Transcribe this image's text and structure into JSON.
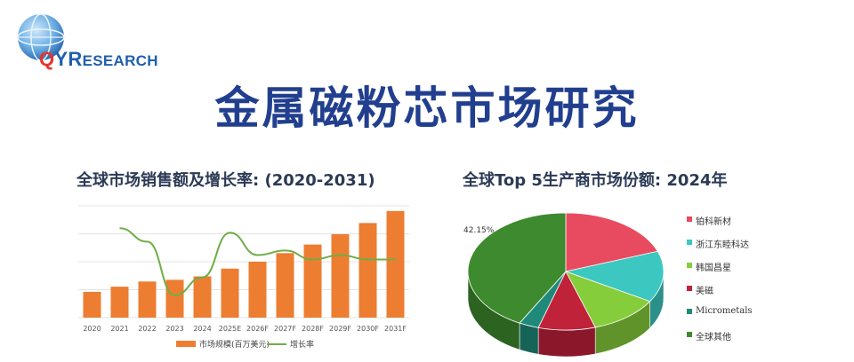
{
  "header": {
    "logo": {
      "q": "Q",
      "y": "Y",
      "r": "R",
      "rest": "ESEARCH"
    },
    "title": "金属磁粉芯市场研究"
  },
  "colors": {
    "title": "#213f8e",
    "bar": "#ed7d31",
    "line": "#70ad47"
  },
  "chart_data": [
    {
      "type": "bar",
      "title": "全球市场销售额及增长率: (2020-2031)",
      "categories": [
        "2020",
        "2021",
        "2022",
        "2023",
        "2024",
        "2025E",
        "2026F",
        "2027F",
        "2028F",
        "2029F",
        "2030F",
        "2031F"
      ],
      "series": [
        {
          "name": "市场规模(百万美元)",
          "type": "bar",
          "values": [
            30,
            36,
            42,
            44,
            48,
            57,
            65,
            75,
            85,
            97,
            110,
            124
          ]
        },
        {
          "name": "增长率",
          "type": "line",
          "values": [
            null,
            20,
            17,
            5,
            9,
            19,
            14,
            15,
            13,
            14,
            13,
            13
          ]
        }
      ],
      "ylim": [
        0,
        130
      ],
      "line_ylim": [
        0,
        25
      ],
      "grid": true,
      "legend": "bottom"
    },
    {
      "type": "pie",
      "title": "全球Top 5生产商市场份额: 2024年",
      "labels": [
        "铂科新材",
        "浙江东睦科达",
        "韩国昌星",
        "美磁",
        "Micrometals",
        "全球其他"
      ],
      "values": [
        19.4,
        14.1,
        11.6,
        9.4,
        3.3,
        42.15
      ],
      "slice_colors": [
        "#e84b5f",
        "#3cc7c0",
        "#86cd3c",
        "#c0223a",
        "#1f8a7a",
        "#3e8a2e"
      ],
      "data_labels": [
        "",
        "",
        "",
        "",
        "",
        "42.15%"
      ],
      "legend": "right"
    }
  ]
}
